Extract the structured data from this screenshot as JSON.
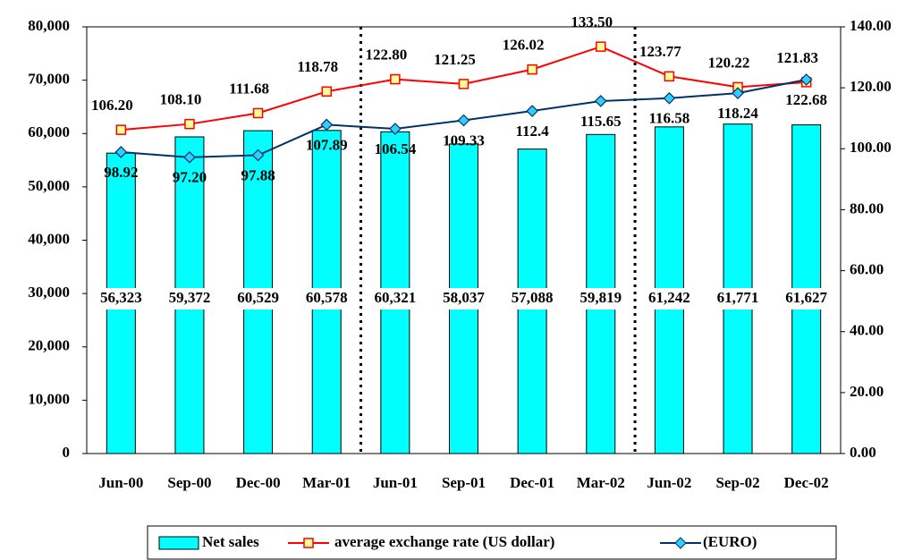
{
  "chart_data": {
    "type": "bar-line",
    "categories": [
      "Jun-00",
      "Sep-00",
      "Dec-00",
      "Mar-01",
      "Jun-01",
      "Sep-01",
      "Dec-01",
      "Mar-02",
      "Jun-02",
      "Sep-02",
      "Dec-02"
    ],
    "series": [
      {
        "name": "Net sales",
        "type": "bar",
        "color": "#00ffff",
        "values": [
          56323,
          59372,
          60529,
          60578,
          60321,
          58037,
          57088,
          59819,
          61242,
          61771,
          61627
        ],
        "value_labels": [
          "56,323",
          "59,372",
          "60,529",
          "60,578",
          "60,321",
          "58,037",
          "57,088",
          "59,819",
          "61,242",
          "61,771",
          "61,627"
        ]
      },
      {
        "name": "average exchange rate (US dollar)",
        "type": "line",
        "axis": "y2",
        "color": "#ff0000",
        "marker": "square",
        "values": [
          106.2,
          108.1,
          111.68,
          118.78,
          122.8,
          121.25,
          126.02,
          133.5,
          123.77,
          120.22,
          121.83
        ],
        "value_labels": [
          "106.20",
          "108.10",
          "111.68",
          "118.78",
          "122.80",
          "121.25",
          "126.02",
          "133.50",
          "123.77",
          "120.22",
          "121.83"
        ]
      },
      {
        "name": "(EURO)",
        "type": "line",
        "axis": "y2",
        "color": "#003366",
        "marker": "diamond",
        "values": [
          98.92,
          97.2,
          97.88,
          107.89,
          106.54,
          109.33,
          112.4,
          115.65,
          116.58,
          118.24,
          122.68
        ],
        "value_labels": [
          "98.92",
          "97.20",
          "97.88",
          "107.89",
          "106.54",
          "109.33",
          "112.4",
          "115.65",
          "116.58",
          "118.24",
          "122.68"
        ]
      }
    ],
    "ylim": [
      0,
      80000
    ],
    "yticks": [
      0,
      {
        "value": 10000,
        "label": "10,000"
      },
      {
        "value": 20000,
        "label": "20,000"
      },
      {
        "value": 30000,
        "label": "30,000"
      },
      {
        "value": 40000,
        "label": "40,000"
      },
      {
        "value": 50000,
        "label": "50,000"
      },
      {
        "value": 60000,
        "label": "60,000"
      },
      {
        "value": 70000,
        "label": "70,000"
      },
      {
        "value": 80000,
        "label": "80,000"
      }
    ],
    "y2lim": [
      0,
      140
    ],
    "y2ticks": [
      {
        "value": 0,
        "label": "0.00"
      },
      {
        "value": 20,
        "label": "20.00"
      },
      {
        "value": 40,
        "label": "40.00"
      },
      {
        "value": 60,
        "label": "60.00"
      },
      {
        "value": 80,
        "label": "80.00"
      },
      {
        "value": 100,
        "label": "100.00"
      },
      {
        "value": 120,
        "label": "120.00"
      },
      {
        "value": 140,
        "label": "140.00"
      }
    ],
    "legend": "bottom"
  }
}
